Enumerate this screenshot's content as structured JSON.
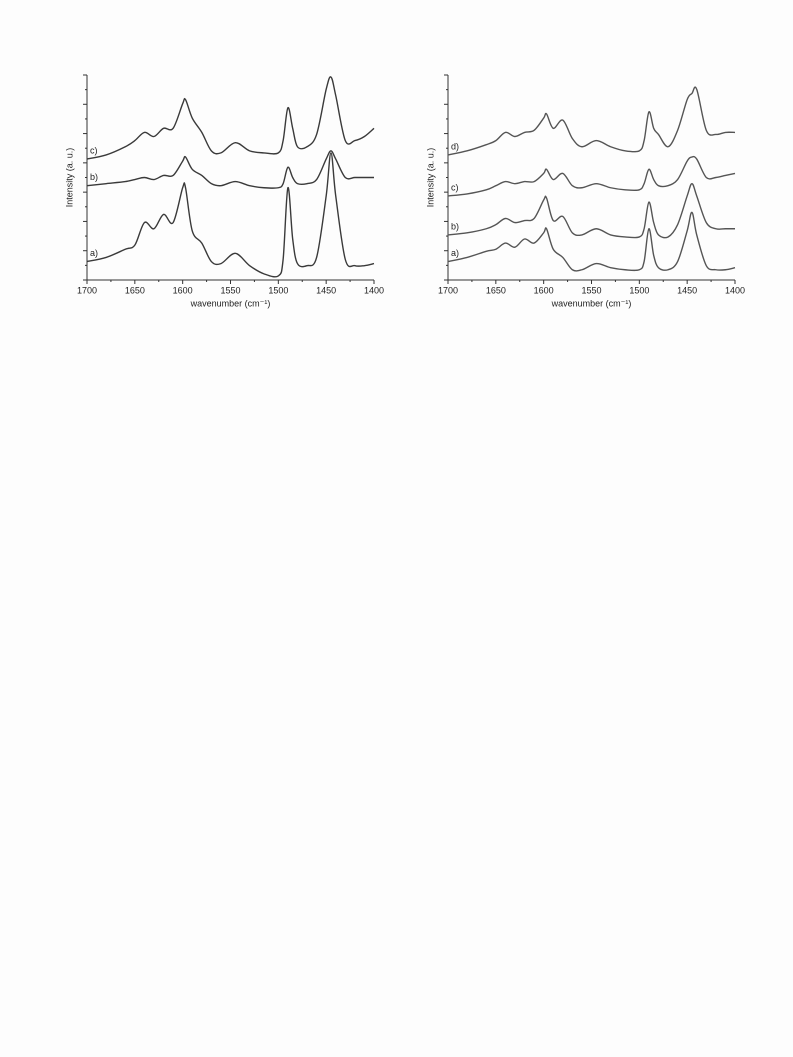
{
  "chart_data": [
    {
      "type": "line",
      "x_label": "wavenumber (cm⁻¹)",
      "y_label": "Intensity (a. u.)",
      "xlim": [
        1700,
        1400
      ],
      "xticks": [
        1700,
        1650,
        1600,
        1550,
        1500,
        1450,
        1400
      ],
      "ylim": [
        0,
        100
      ],
      "x": [
        1700,
        1680,
        1660,
        1650,
        1640,
        1630,
        1620,
        1610,
        1600,
        1597,
        1590,
        1580,
        1570,
        1560,
        1545,
        1530,
        1515,
        1500,
        1495,
        1490,
        1485,
        1480,
        1470,
        1460,
        1450,
        1445,
        1440,
        1430,
        1420,
        1410,
        1400
      ],
      "series": [
        {
          "name": "a)",
          "color": "#3a3a3a",
          "values": [
            9,
            11,
            15,
            17,
            28,
            25,
            32,
            28,
            45,
            45,
            24,
            18,
            9,
            8,
            13,
            7,
            3,
            2,
            10,
            45,
            20,
            8,
            7,
            11,
            41,
            62,
            41,
            10,
            7,
            7,
            8
          ]
        },
        {
          "name": "b)",
          "color": "#3a3a3a",
          "values": [
            46,
            47,
            48,
            49,
            50,
            49,
            51,
            51,
            58,
            60,
            54,
            51,
            47,
            46,
            48,
            46,
            45,
            45,
            47,
            55,
            50,
            47,
            47,
            49,
            59,
            63,
            59,
            50,
            50,
            50,
            50
          ]
        },
        {
          "name": "c)",
          "color": "#3a3a3a",
          "values": [
            59,
            61,
            65,
            68,
            72,
            70,
            74,
            74,
            86,
            88,
            79,
            72,
            63,
            62,
            67,
            63,
            62,
            62,
            68,
            84,
            74,
            65,
            65,
            71,
            93,
            99,
            90,
            68,
            68,
            70,
            74
          ]
        }
      ]
    },
    {
      "type": "line",
      "x_label": "wavenumber (cm⁻¹)",
      "y_label": "Intensity (a. u.)",
      "xlim": [
        1700,
        1400
      ],
      "xticks": [
        1700,
        1650,
        1600,
        1550,
        1500,
        1450,
        1400
      ],
      "ylim": [
        0,
        100
      ],
      "x": [
        1700,
        1680,
        1660,
        1650,
        1640,
        1630,
        1620,
        1610,
        1600,
        1597,
        1590,
        1580,
        1570,
        1560,
        1545,
        1530,
        1515,
        1500,
        1495,
        1490,
        1485,
        1480,
        1470,
        1460,
        1450,
        1445,
        1440,
        1430,
        1420,
        1410,
        1400
      ],
      "series": [
        {
          "name": "a)",
          "color": "#555555",
          "values": [
            9,
            11,
            14,
            15,
            18,
            16,
            20,
            18,
            23,
            25,
            15,
            11,
            5,
            5,
            8,
            6,
            5,
            5,
            9,
            25,
            12,
            6,
            5,
            9,
            24,
            33,
            22,
            7,
            5,
            5,
            6
          ]
        },
        {
          "name": "b)",
          "color": "#555555",
          "values": [
            22,
            23,
            25,
            27,
            30,
            28,
            29,
            30,
            39,
            40,
            29,
            31,
            23,
            22,
            25,
            22,
            21,
            21,
            25,
            38,
            28,
            22,
            21,
            27,
            41,
            47,
            41,
            28,
            25,
            25,
            25
          ]
        },
        {
          "name": "c)",
          "color": "#555555",
          "values": [
            41,
            42,
            44,
            46,
            48,
            47,
            48,
            48,
            52,
            54,
            49,
            52,
            46,
            45,
            47,
            45,
            44,
            44,
            47,
            54,
            49,
            46,
            46,
            49,
            58,
            60,
            59,
            50,
            50,
            51,
            52
          ]
        },
        {
          "name": "d)",
          "color": "#555555",
          "values": [
            61,
            63,
            66,
            68,
            72,
            70,
            72,
            73,
            79,
            81,
            74,
            78,
            69,
            65,
            68,
            65,
            63,
            63,
            68,
            82,
            74,
            71,
            65,
            73,
            88,
            91,
            93,
            73,
            71,
            72,
            72
          ]
        }
      ]
    }
  ]
}
